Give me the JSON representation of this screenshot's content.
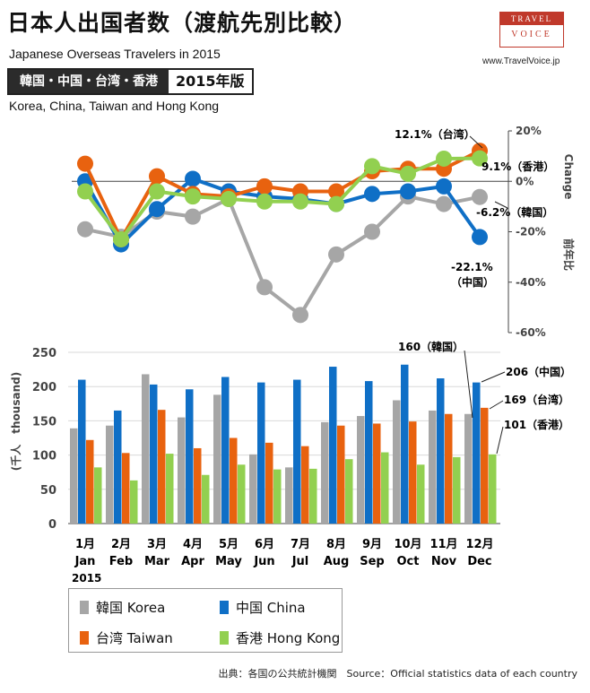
{
  "header": {
    "title": "日本人出国者数（渡航先別比較）",
    "subtitle_en": "Japanese Overseas Travelers in 2015",
    "badge_regions": "韓国・中国・台湾・香港",
    "badge_year": "2015年版",
    "subtitle_en2": "Korea, China, Taiwan and Hong Kong"
  },
  "logo": {
    "line1": "TRAVEL",
    "line2": "VOICE"
  },
  "site_url": "www.TravelVoice.jp",
  "source_text": "出典：各国の公共統計機関　Source：Official statistics data of each country",
  "colors": {
    "korea": "#a6a6a6",
    "china": "#0f6fc6",
    "taiwan": "#e8620f",
    "hongkong": "#92d050"
  },
  "chart_data": [
    {
      "type": "line",
      "categories": [
        "1月",
        "2月",
        "3月",
        "4月",
        "5月",
        "6月",
        "7月",
        "8月",
        "9月",
        "10月",
        "11月",
        "12月"
      ],
      "ylabel": "前年比 Change",
      "ylim": [
        -60,
        20
      ],
      "yticks": [
        "20%",
        "0%",
        "-20%",
        "-40%",
        "-60%"
      ],
      "series": [
        {
          "name": "韓国 Korea",
          "key": "korea",
          "values": [
            -19,
            -22,
            -12,
            -14,
            -7,
            -42,
            -53,
            -29,
            -20,
            -6,
            -9,
            -6.2
          ]
        },
        {
          "name": "中国 China",
          "key": "china",
          "values": [
            0,
            -25,
            -11,
            1,
            -4,
            -6,
            -7,
            -9,
            -5,
            -4,
            -2,
            -22.1
          ]
        },
        {
          "name": "台湾 Taiwan",
          "key": "taiwan",
          "values": [
            7,
            -23,
            2,
            -5,
            -6,
            -2,
            -4,
            -4,
            4,
            5,
            5,
            12.1
          ]
        },
        {
          "name": "香港 Hong Kong",
          "key": "hongkong",
          "values": [
            -4,
            -23,
            -4,
            -6,
            -7,
            -8,
            -8,
            -9,
            6,
            3,
            9,
            9.1
          ]
        }
      ],
      "annotations": [
        {
          "series": "taiwan",
          "index": 11,
          "text": "12.1%（台湾）"
        },
        {
          "series": "hongkong",
          "index": 11,
          "text": "9.1%（香港）"
        },
        {
          "series": "korea",
          "index": 11,
          "text": "-6.2%（韓国）"
        },
        {
          "series": "china",
          "index": 11,
          "text": "-22.1%",
          "text2": "（中国）"
        }
      ]
    },
    {
      "type": "bar",
      "categories": [
        "1月",
        "2月",
        "3月",
        "4月",
        "5月",
        "6月",
        "7月",
        "8月",
        "9月",
        "10月",
        "11月",
        "12月"
      ],
      "categories_en": [
        "Jan",
        "Feb",
        "Mar",
        "Apr",
        "May",
        "Jun",
        "Jul",
        "Aug",
        "Sep",
        "Oct",
        "Nov",
        "Dec"
      ],
      "year_label": "2015",
      "ylabel": "(千人　thousand)",
      "ylim": [
        0,
        250
      ],
      "yticks": [
        "250",
        "200",
        "150",
        "100",
        "50",
        "0"
      ],
      "series": [
        {
          "name": "韓国 Korea",
          "key": "korea",
          "values": [
            139,
            143,
            218,
            155,
            188,
            101,
            82,
            148,
            157,
            180,
            165,
            160
          ]
        },
        {
          "name": "中国 China",
          "key": "china",
          "values": [
            210,
            165,
            203,
            196,
            214,
            206,
            210,
            229,
            208,
            232,
            212,
            206
          ]
        },
        {
          "name": "台湾 Taiwan",
          "key": "taiwan",
          "values": [
            122,
            103,
            166,
            110,
            125,
            118,
            113,
            143,
            146,
            149,
            160,
            169
          ]
        },
        {
          "name": "香港 Hong Kong",
          "key": "hongkong",
          "values": [
            82,
            63,
            102,
            71,
            86,
            79,
            80,
            94,
            104,
            86,
            97,
            101
          ]
        }
      ],
      "annotations": [
        {
          "series": "korea",
          "index": 11,
          "text": "160（韓国）"
        },
        {
          "series": "china",
          "index": 11,
          "text": "206（中国）"
        },
        {
          "series": "taiwan",
          "index": 11,
          "text": "169（台湾）"
        },
        {
          "series": "hongkong",
          "index": 11,
          "text": "101（香港）"
        }
      ]
    }
  ]
}
